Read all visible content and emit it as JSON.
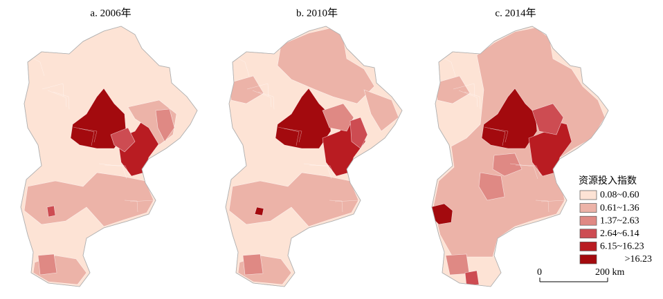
{
  "panels": [
    {
      "title": "a. 2006年"
    },
    {
      "title": "b. 2010年"
    },
    {
      "title": "c. 2014年"
    }
  ],
  "legend": {
    "title": "资源投入指数",
    "items": [
      {
        "label": "0.08~0.60",
        "color": "#fde3d5"
      },
      {
        "label": "0.61~1.36",
        "color": "#ecb3a8"
      },
      {
        "label": "1.37~2.63",
        "color": "#df8984"
      },
      {
        "label": "2.64~6.14",
        "color": "#cd4c52"
      },
      {
        "label": "6.15~16.23",
        "color": "#b91c22"
      },
      {
        "label": ">16.23",
        "color": "#a30a0e"
      }
    ]
  },
  "scale_bar": {
    "labels": [
      "0",
      "200 km"
    ]
  }
}
